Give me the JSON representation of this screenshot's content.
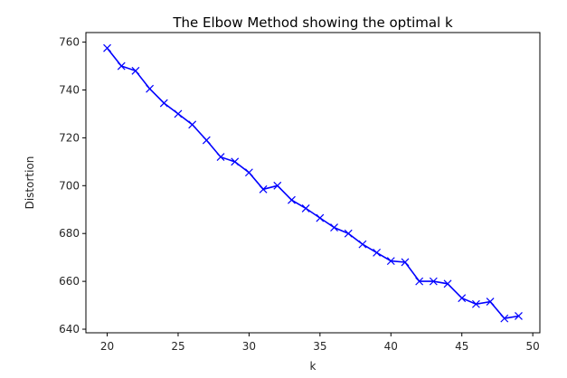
{
  "chart_data": {
    "type": "line",
    "title": "The Elbow Method showing the optimal k",
    "xlabel": "k",
    "ylabel": "Distortion",
    "xlim": [
      18.5,
      50.5
    ],
    "ylim": [
      638.5,
      764
    ],
    "xticks": [
      20,
      25,
      30,
      35,
      40,
      45,
      50
    ],
    "yticks": [
      640,
      660,
      680,
      700,
      720,
      740,
      760
    ],
    "grid": false,
    "marker": "x",
    "line_color": "#0000ff",
    "series": [
      {
        "x": [
          20,
          21,
          22,
          23,
          24,
          25,
          26,
          27,
          28,
          29,
          30,
          31,
          32,
          33,
          34,
          35,
          36,
          37,
          38,
          39,
          40,
          41,
          42,
          43,
          44,
          45,
          46,
          47,
          48,
          49
        ],
        "values": [
          757.5,
          750,
          748,
          740.5,
          734.5,
          730,
          725.5,
          719,
          712,
          710,
          705.5,
          698.5,
          700,
          694,
          690.5,
          686.5,
          682.5,
          680,
          675.5,
          672,
          668.5,
          668,
          660,
          660,
          659,
          653,
          650.5,
          651.5,
          644.5,
          645.5
        ]
      }
    ]
  }
}
